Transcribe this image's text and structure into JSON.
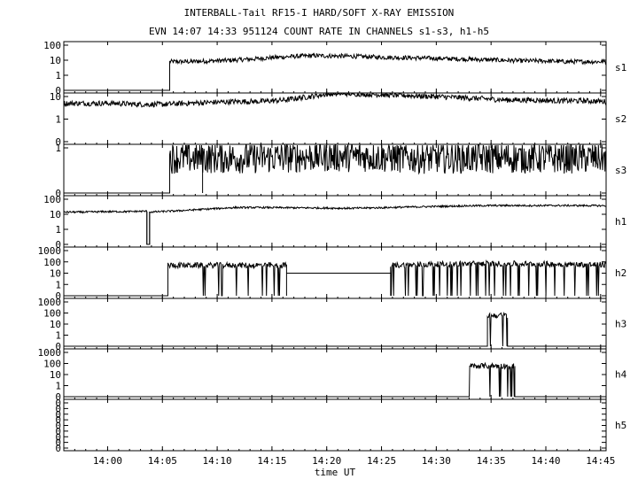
{
  "title": "INTERBALL-Tail RF15-I HARD/SOFT X-RAY EMISSION",
  "subtitle": "EVN 14:07 14:33 951124  COUNT RATE IN CHANNELS s1-s3, h1-h5",
  "chart_data": {
    "type": "line",
    "xlabel": "time UT",
    "x_range": [
      "13:56",
      "14:45:30"
    ],
    "x_ticks": [
      "14:00",
      "14:05",
      "14:10",
      "14:15",
      "14:20",
      "14:25",
      "14:30",
      "14:35",
      "14:40",
      "14:45"
    ],
    "y_scale": "log",
    "panels": [
      {
        "name": "s1",
        "y_ticks": [
          "0",
          "1",
          "10",
          "100"
        ],
        "segments": [
          {
            "t_start": "14:05:40",
            "t_end": "14:45:30",
            "level": [
              8,
              8,
              9,
              10,
              12,
              15,
              18,
              20,
              19,
              18,
              16,
              15,
              14,
              13,
              12,
              11,
              10,
              9,
              9,
              8,
              8,
              8
            ],
            "noise": 0.15
          }
        ],
        "before_level": 0
      },
      {
        "name": "s2",
        "y_ticks": [
          "0",
          "1",
          "10"
        ],
        "segments": [
          {
            "t_start": "13:56",
            "t_end": "14:45:30",
            "level": [
              5,
              5,
              5,
              4.5,
              4.5,
              5,
              5.5,
              6,
              6,
              7,
              10,
              14,
              13,
              12,
              11,
              10,
              9,
              8,
              7,
              7,
              6.5,
              6.5,
              6
            ],
            "noise": 0.12
          }
        ],
        "before_level": 0
      },
      {
        "name": "s3",
        "y_ticks": [
          "0",
          "1"
        ],
        "segments": [
          {
            "t_start": "14:05:40",
            "t_end": "14:45:30",
            "level": [
              0.6,
              0.6,
              0.6,
              0.65,
              0.65,
              0.6,
              0.6,
              0.6,
              0.6,
              0.6
            ],
            "noise": 0.35
          }
        ],
        "spikes": [
          "14:08:40"
        ],
        "before_level": 0
      },
      {
        "name": "h1",
        "y_ticks": [
          "0",
          "1",
          "10",
          "100"
        ],
        "segments": [
          {
            "t_start": "13:56",
            "t_end": "14:03:35",
            "level": [
              14,
              14,
              15,
              15,
              16
            ],
            "noise": 0.06
          },
          {
            "t_start": "14:03:50",
            "t_end": "14:45:30",
            "level": [
              14,
              17,
              22,
              28,
              28,
              27,
              26,
              25,
              27,
              30,
              33,
              36,
              38,
              38,
              38,
              38,
              37
            ],
            "noise": 0.06
          }
        ],
        "dropouts": [
          "14:03:35",
          "14:03:50"
        ],
        "before_level": 0
      },
      {
        "name": "h2",
        "y_ticks": [
          "0",
          "1",
          "10",
          "100",
          "1000"
        ],
        "segments": [
          {
            "t_start": "14:05:30",
            "t_end": "14:16:20",
            "level": [
              50
            ],
            "noise": 0.25,
            "bursty": true
          },
          {
            "t_start": "14:25:50",
            "t_end": "14:45:30",
            "level": [
              50,
              60,
              70,
              70,
              60,
              55
            ],
            "noise": 0.25,
            "bursty": true
          }
        ],
        "gap_level": 10,
        "before_level": 0
      },
      {
        "name": "h3",
        "y_ticks": [
          "0",
          "1",
          "10",
          "100",
          "1000"
        ],
        "segments": [
          {
            "t_start": "14:34:40",
            "t_end": "14:36:30",
            "level": [
              60
            ],
            "noise": 0.25,
            "bursty": true
          }
        ],
        "before_level": 0
      },
      {
        "name": "h4",
        "y_ticks": [
          "0",
          "1",
          "10",
          "100",
          "1000"
        ],
        "segments": [
          {
            "t_start": "14:33:00",
            "t_end": "14:37:10",
            "level": [
              60
            ],
            "noise": 0.25,
            "bursty": true
          }
        ],
        "before_level": 0
      },
      {
        "name": "h5",
        "y_ticks": [
          "0",
          "0",
          "0",
          "0",
          "0",
          "0",
          "0",
          "0",
          "0"
        ],
        "segments": [],
        "before_level": 0
      }
    ]
  }
}
